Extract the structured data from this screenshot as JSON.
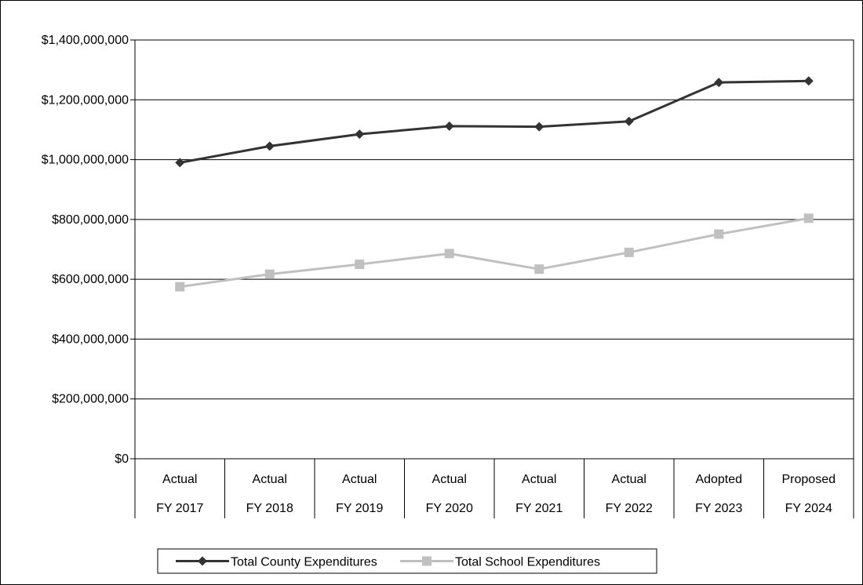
{
  "chart_data": {
    "type": "line",
    "title": "",
    "xlabel": "",
    "ylabel": "",
    "categories": [
      [
        "Actual",
        "FY 2017"
      ],
      [
        "Actual",
        "FY 2018"
      ],
      [
        "Actual",
        "FY 2019"
      ],
      [
        "Actual",
        "FY 2020"
      ],
      [
        "Actual",
        "FY 2021"
      ],
      [
        "Actual",
        "FY 2022"
      ],
      [
        "Adopted",
        "FY 2023"
      ],
      [
        "Proposed",
        "FY 2024"
      ]
    ],
    "ylim": [
      0,
      1400000000
    ],
    "yticks": [
      0,
      200000000,
      400000000,
      600000000,
      800000000,
      1000000000,
      1200000000,
      1400000000
    ],
    "ytick_labels": [
      "$0",
      "$200,000,000",
      "$400,000,000",
      "$600,000,000",
      "$800,000,000",
      "$1,000,000,000",
      "$1,200,000,000",
      "$1,400,000,000"
    ],
    "grid": true,
    "legend_position": "bottom",
    "series": [
      {
        "name": "Total County Expenditures",
        "color": "#333333",
        "marker": "diamond",
        "values": [
          990000000,
          1045000000,
          1085000000,
          1112000000,
          1110000000,
          1128000000,
          1258000000,
          1263000000
        ]
      },
      {
        "name": "Total School Expenditures",
        "color": "#c0c0c0",
        "marker": "square",
        "values": [
          575000000,
          617000000,
          650000000,
          686000000,
          634000000,
          690000000,
          751000000,
          804000000
        ]
      }
    ]
  }
}
